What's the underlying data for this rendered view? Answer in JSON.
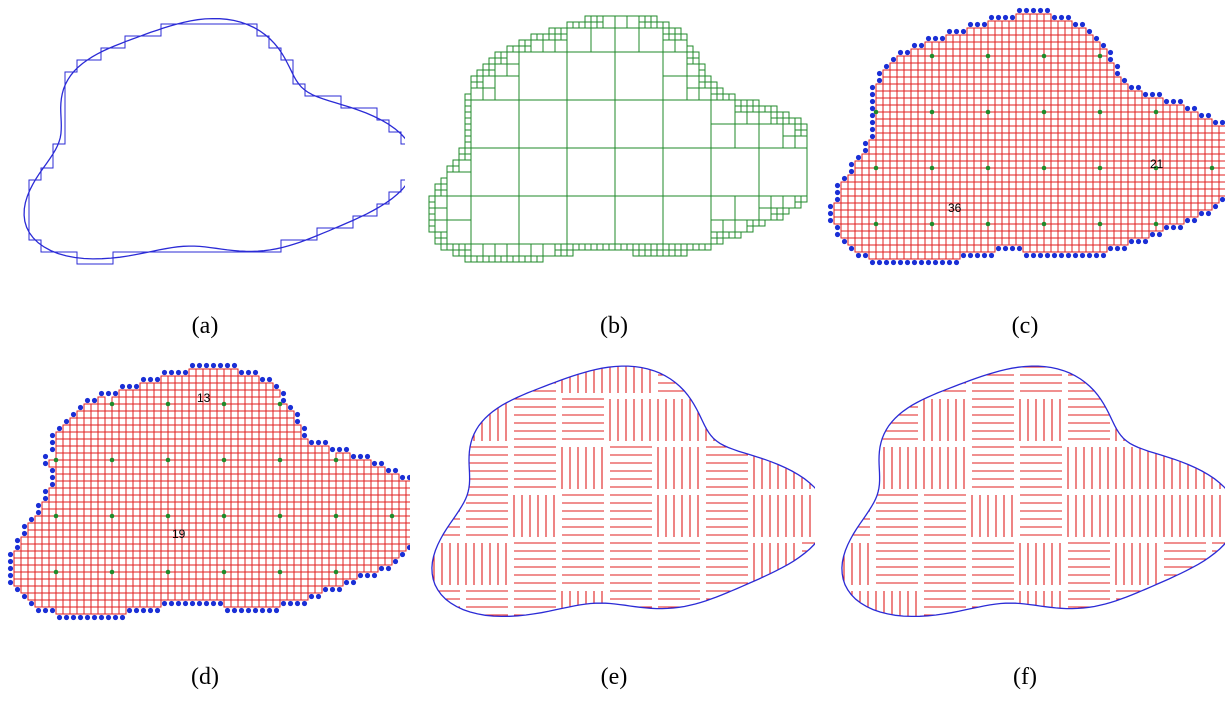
{
  "colors": {
    "outline": "#2b2bd6",
    "quadtree": "#1f8a2a",
    "grid": "#e01f1f",
    "boundary_dot": "#1a2fd6",
    "junction_dot": "#1f8a2a"
  },
  "panels": [
    {
      "id": "a",
      "caption": "(a)",
      "content": "blob outline with staircase approximation"
    },
    {
      "id": "b",
      "caption": "(b)",
      "content": "quadtree subdivision"
    },
    {
      "id": "c",
      "caption": "(c)",
      "content": "grid blocks with boundary dots",
      "labels": [
        "21",
        "36"
      ]
    },
    {
      "id": "d",
      "caption": "(d)",
      "content": "grid blocks with boundary dots",
      "labels": [
        "13",
        "19"
      ]
    },
    {
      "id": "e",
      "caption": "(e)",
      "content": "maze path filling region"
    },
    {
      "id": "f",
      "caption": "(f)",
      "content": "maze path filling region"
    }
  ]
}
